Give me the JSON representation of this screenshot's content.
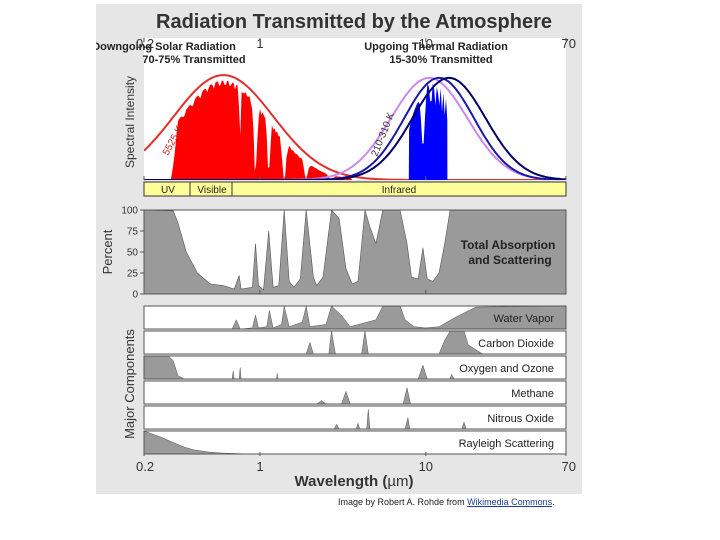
{
  "chart_data": {
    "type": "area",
    "title": "Radiation Transmitted by the Atmosphere",
    "xlabel_prefix": "Wavelength (",
    "xlabel_unit": "µm",
    "xlabel_suffix": ")",
    "x_scale": "log",
    "xlim": [
      0.2,
      70
    ],
    "x_ticks": [
      "0.2",
      "1",
      "10",
      "70"
    ],
    "x_tick_values": [
      0.2,
      1,
      10,
      70
    ],
    "top_panel": {
      "ylabel": "Spectral Intensity",
      "solar": {
        "heading_line1": "Downgoing Solar Radiation",
        "heading_line2": "70-75% Transmitted",
        "blackbody_label": "5525 K",
        "color": "#ff0000",
        "curve_color": "#e0302a"
      },
      "thermal": {
        "heading_line1": "Upgoing Thermal Radiation",
        "heading_line2": "15-30% Transmitted",
        "blackbody_label": "210-310 K",
        "color": "#0000ff",
        "curve_colors": [
          "#cc88ee",
          "#1a1aa8",
          "#000066"
        ]
      },
      "bands": [
        "UV",
        "Visible",
        "Infrared"
      ],
      "band_color": "#ffff99"
    },
    "absorption_panel": {
      "ylabel": "Percent",
      "y_ticks": [
        100,
        75,
        50,
        25,
        0
      ],
      "ylim": [
        0,
        100
      ],
      "label_line1": "Total Absorption",
      "label_line2": "and Scattering",
      "fill_color": "#9a9a9a",
      "series": [
        {
          "x": 0.2,
          "y": 100
        },
        {
          "x": 0.3,
          "y": 99
        },
        {
          "x": 0.32,
          "y": 85
        },
        {
          "x": 0.36,
          "y": 50
        },
        {
          "x": 0.42,
          "y": 25
        },
        {
          "x": 0.5,
          "y": 12
        },
        {
          "x": 0.6,
          "y": 10
        },
        {
          "x": 0.7,
          "y": 6
        },
        {
          "x": 0.75,
          "y": 22
        },
        {
          "x": 0.77,
          "y": 6
        },
        {
          "x": 0.9,
          "y": 8
        },
        {
          "x": 0.94,
          "y": 60
        },
        {
          "x": 0.98,
          "y": 10
        },
        {
          "x": 1.05,
          "y": 5
        },
        {
          "x": 1.13,
          "y": 75
        },
        {
          "x": 1.2,
          "y": 8
        },
        {
          "x": 1.3,
          "y": 10
        },
        {
          "x": 1.4,
          "y": 100
        },
        {
          "x": 1.5,
          "y": 15
        },
        {
          "x": 1.6,
          "y": 8
        },
        {
          "x": 1.75,
          "y": 18
        },
        {
          "x": 1.9,
          "y": 100
        },
        {
          "x": 2.1,
          "y": 20
        },
        {
          "x": 2.2,
          "y": 10
        },
        {
          "x": 2.4,
          "y": 20
        },
        {
          "x": 2.7,
          "y": 100
        },
        {
          "x": 3.0,
          "y": 90
        },
        {
          "x": 3.3,
          "y": 30
        },
        {
          "x": 3.6,
          "y": 12
        },
        {
          "x": 3.9,
          "y": 15
        },
        {
          "x": 4.3,
          "y": 100
        },
        {
          "x": 4.6,
          "y": 80
        },
        {
          "x": 5.0,
          "y": 60
        },
        {
          "x": 5.5,
          "y": 100
        },
        {
          "x": 7.0,
          "y": 100
        },
        {
          "x": 7.7,
          "y": 60
        },
        {
          "x": 8.2,
          "y": 20
        },
        {
          "x": 9.0,
          "y": 18
        },
        {
          "x": 9.6,
          "y": 55
        },
        {
          "x": 10.2,
          "y": 18
        },
        {
          "x": 11.0,
          "y": 15
        },
        {
          "x": 12.0,
          "y": 25
        },
        {
          "x": 13.0,
          "y": 60
        },
        {
          "x": 14.0,
          "y": 100
        },
        {
          "x": 70.0,
          "y": 100
        }
      ]
    },
    "components_panel": {
      "ylabel": "Major Components",
      "fill_color": "#9a9a9a",
      "components": [
        {
          "name": "Water Vapor",
          "points": [
            {
              "x": 0.2,
              "y": 0
            },
            {
              "x": 0.68,
              "y": 0
            },
            {
              "x": 0.72,
              "y": 40
            },
            {
              "x": 0.76,
              "y": 0
            },
            {
              "x": 0.9,
              "y": 5
            },
            {
              "x": 0.94,
              "y": 60
            },
            {
              "x": 0.98,
              "y": 5
            },
            {
              "x": 1.1,
              "y": 10
            },
            {
              "x": 1.14,
              "y": 80
            },
            {
              "x": 1.2,
              "y": 5
            },
            {
              "x": 1.35,
              "y": 20
            },
            {
              "x": 1.4,
              "y": 100
            },
            {
              "x": 1.5,
              "y": 10
            },
            {
              "x": 1.8,
              "y": 30
            },
            {
              "x": 1.9,
              "y": 100
            },
            {
              "x": 2.0,
              "y": 10
            },
            {
              "x": 2.5,
              "y": 20
            },
            {
              "x": 2.7,
              "y": 100
            },
            {
              "x": 3.1,
              "y": 60
            },
            {
              "x": 3.5,
              "y": 10
            },
            {
              "x": 5.0,
              "y": 40
            },
            {
              "x": 5.5,
              "y": 100
            },
            {
              "x": 7.0,
              "y": 100
            },
            {
              "x": 7.5,
              "y": 40
            },
            {
              "x": 8.5,
              "y": 10
            },
            {
              "x": 10.0,
              "y": 5
            },
            {
              "x": 12.0,
              "y": 10
            },
            {
              "x": 15.0,
              "y": 50
            },
            {
              "x": 20.0,
              "y": 95
            },
            {
              "x": 70.0,
              "y": 100
            }
          ]
        },
        {
          "name": "Carbon Dioxide",
          "points": [
            {
              "x": 0.2,
              "y": 0
            },
            {
              "x": 1.9,
              "y": 0
            },
            {
              "x": 2.0,
              "y": 50
            },
            {
              "x": 2.1,
              "y": 0
            },
            {
              "x": 2.6,
              "y": 0
            },
            {
              "x": 2.7,
              "y": 100
            },
            {
              "x": 2.85,
              "y": 0
            },
            {
              "x": 4.1,
              "y": 0
            },
            {
              "x": 4.3,
              "y": 100
            },
            {
              "x": 4.5,
              "y": 0
            },
            {
              "x": 12.0,
              "y": 0
            },
            {
              "x": 13.0,
              "y": 60
            },
            {
              "x": 14.0,
              "y": 100
            },
            {
              "x": 17.0,
              "y": 100
            },
            {
              "x": 18.0,
              "y": 40
            },
            {
              "x": 22.0,
              "y": 0
            },
            {
              "x": 70.0,
              "y": 0
            }
          ]
        },
        {
          "name": "Oxygen and Ozone",
          "points": [
            {
              "x": 0.2,
              "y": 100
            },
            {
              "x": 0.28,
              "y": 100
            },
            {
              "x": 0.3,
              "y": 80
            },
            {
              "x": 0.32,
              "y": 15
            },
            {
              "x": 0.35,
              "y": 0
            },
            {
              "x": 0.68,
              "y": 0
            },
            {
              "x": 0.69,
              "y": 35
            },
            {
              "x": 0.7,
              "y": 0
            },
            {
              "x": 0.75,
              "y": 0
            },
            {
              "x": 0.76,
              "y": 50
            },
            {
              "x": 0.77,
              "y": 0
            },
            {
              "x": 1.26,
              "y": 0
            },
            {
              "x": 1.27,
              "y": 25
            },
            {
              "x": 1.28,
              "y": 0
            },
            {
              "x": 9.0,
              "y": 0
            },
            {
              "x": 9.6,
              "y": 60
            },
            {
              "x": 10.2,
              "y": 0
            },
            {
              "x": 14.0,
              "y": 0
            },
            {
              "x": 14.3,
              "y": 20
            },
            {
              "x": 14.8,
              "y": 0
            },
            {
              "x": 70.0,
              "y": 0
            }
          ]
        },
        {
          "name": "Methane",
          "points": [
            {
              "x": 0.2,
              "y": 0
            },
            {
              "x": 2.2,
              "y": 0
            },
            {
              "x": 2.35,
              "y": 15
            },
            {
              "x": 2.5,
              "y": 0
            },
            {
              "x": 3.1,
              "y": 0
            },
            {
              "x": 3.3,
              "y": 55
            },
            {
              "x": 3.5,
              "y": 0
            },
            {
              "x": 7.3,
              "y": 0
            },
            {
              "x": 7.7,
              "y": 70
            },
            {
              "x": 8.1,
              "y": 0
            },
            {
              "x": 70.0,
              "y": 0
            }
          ]
        },
        {
          "name": "Nitrous Oxide",
          "points": [
            {
              "x": 0.2,
              "y": 0
            },
            {
              "x": 2.8,
              "y": 0
            },
            {
              "x": 2.9,
              "y": 20
            },
            {
              "x": 3.0,
              "y": 0
            },
            {
              "x": 3.8,
              "y": 0
            },
            {
              "x": 3.9,
              "y": 25
            },
            {
              "x": 4.0,
              "y": 0
            },
            {
              "x": 4.4,
              "y": 0
            },
            {
              "x": 4.5,
              "y": 85
            },
            {
              "x": 4.6,
              "y": 0
            },
            {
              "x": 7.5,
              "y": 0
            },
            {
              "x": 7.8,
              "y": 50
            },
            {
              "x": 8.0,
              "y": 0
            },
            {
              "x": 16.5,
              "y": 0
            },
            {
              "x": 17.0,
              "y": 30
            },
            {
              "x": 17.5,
              "y": 0
            },
            {
              "x": 70.0,
              "y": 0
            }
          ]
        },
        {
          "name": "Rayleigh Scattering",
          "points": [
            {
              "x": 0.2,
              "y": 100
            },
            {
              "x": 0.25,
              "y": 75
            },
            {
              "x": 0.3,
              "y": 50
            },
            {
              "x": 0.35,
              "y": 30
            },
            {
              "x": 0.4,
              "y": 18
            },
            {
              "x": 0.5,
              "y": 8
            },
            {
              "x": 0.6,
              "y": 4
            },
            {
              "x": 0.8,
              "y": 1
            },
            {
              "x": 1.0,
              "y": 0
            },
            {
              "x": 70.0,
              "y": 0
            }
          ]
        }
      ]
    }
  },
  "credit": {
    "prefix": "Image by Robert A. Rohde from ",
    "link_text": "Wikimedia Commons",
    "suffix": "."
  }
}
